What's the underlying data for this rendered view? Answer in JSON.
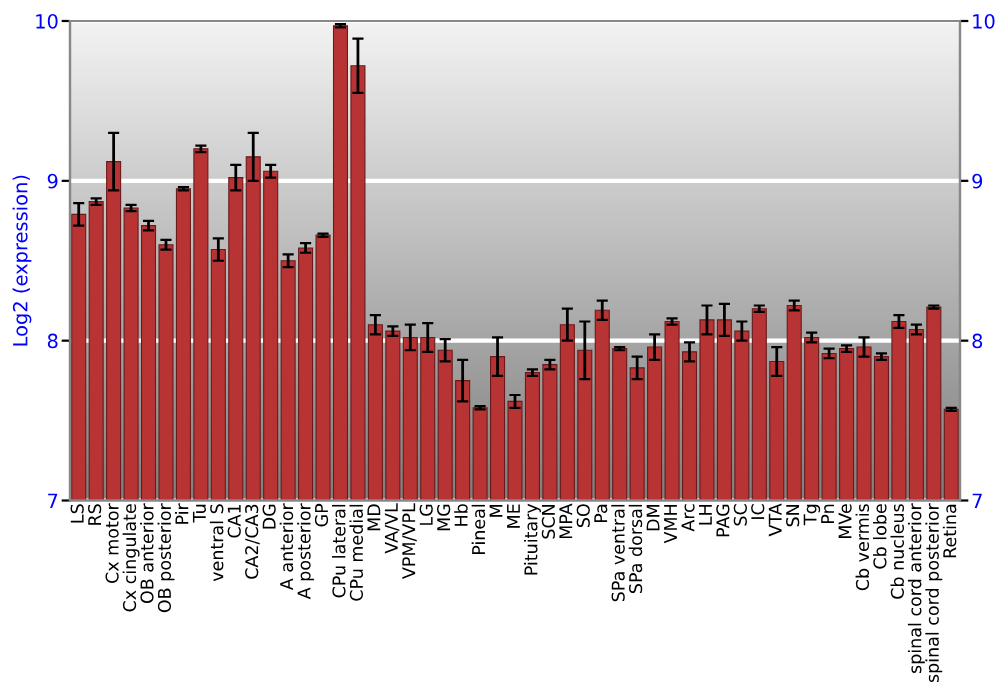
{
  "chart_data": {
    "type": "bar",
    "ylabel": "Log2 (expression)",
    "categories": [
      "LS",
      "RS",
      "Cx motor",
      "Cx cingulate",
      "OB anterior",
      "OB posterior",
      "Pir",
      "Tu",
      "ventral S",
      "CA1",
      "CA2/CA3",
      "DG",
      "A anterior",
      "A posterior",
      "GP",
      "CPu lateral",
      "CPu medial",
      "MD",
      "VA/VL",
      "VPM/VPL",
      "LG",
      "MG",
      "Hb",
      "Pineal",
      "M",
      "ME",
      "Pituitary",
      "SCN",
      "MPA",
      "SO",
      "Pa",
      "SPa ventral",
      "SPa dorsal",
      "DM",
      "VMH",
      "Arc",
      "LH",
      "PAG",
      "SC",
      "IC",
      "VTA",
      "SN",
      "Tg",
      "Pn",
      "MVe",
      "Cb vermis",
      "Cb lobe",
      "Cb nucleus",
      "spinal cord anterior",
      "spinal cord posterior",
      "Retina"
    ],
    "values": [
      8.79,
      8.87,
      9.12,
      8.83,
      8.72,
      8.6,
      8.95,
      9.2,
      8.57,
      9.02,
      9.15,
      9.06,
      8.5,
      8.58,
      8.66,
      9.97,
      9.72,
      8.1,
      8.06,
      8.02,
      8.02,
      7.94,
      7.75,
      7.58,
      7.9,
      7.62,
      7.8,
      7.85,
      8.1,
      7.94,
      8.19,
      7.95,
      7.83,
      7.96,
      8.12,
      7.93,
      8.13,
      8.13,
      8.06,
      8.2,
      7.87,
      8.22,
      8.02,
      7.92,
      7.95,
      7.96,
      7.9,
      8.12,
      8.07,
      8.21,
      7.57
    ],
    "errors": [
      0.07,
      0.02,
      0.18,
      0.02,
      0.03,
      0.03,
      0.01,
      0.02,
      0.07,
      0.08,
      0.15,
      0.04,
      0.04,
      0.03,
      0.01,
      0.01,
      0.17,
      0.06,
      0.03,
      0.08,
      0.09,
      0.07,
      0.13,
      0.01,
      0.12,
      0.04,
      0.02,
      0.03,
      0.1,
      0.18,
      0.06,
      0.01,
      0.07,
      0.08,
      0.02,
      0.06,
      0.09,
      0.1,
      0.06,
      0.02,
      0.09,
      0.03,
      0.03,
      0.03,
      0.02,
      0.06,
      0.02,
      0.04,
      0.03,
      0.01,
      0.01
    ],
    "color": "#b83434",
    "ylim": [
      7,
      10
    ],
    "yticks": [
      7,
      8,
      9,
      10
    ],
    "y2lim": [
      7,
      10
    ],
    "y2ticks": [
      7,
      8,
      9,
      10
    ],
    "grid": "y"
  }
}
